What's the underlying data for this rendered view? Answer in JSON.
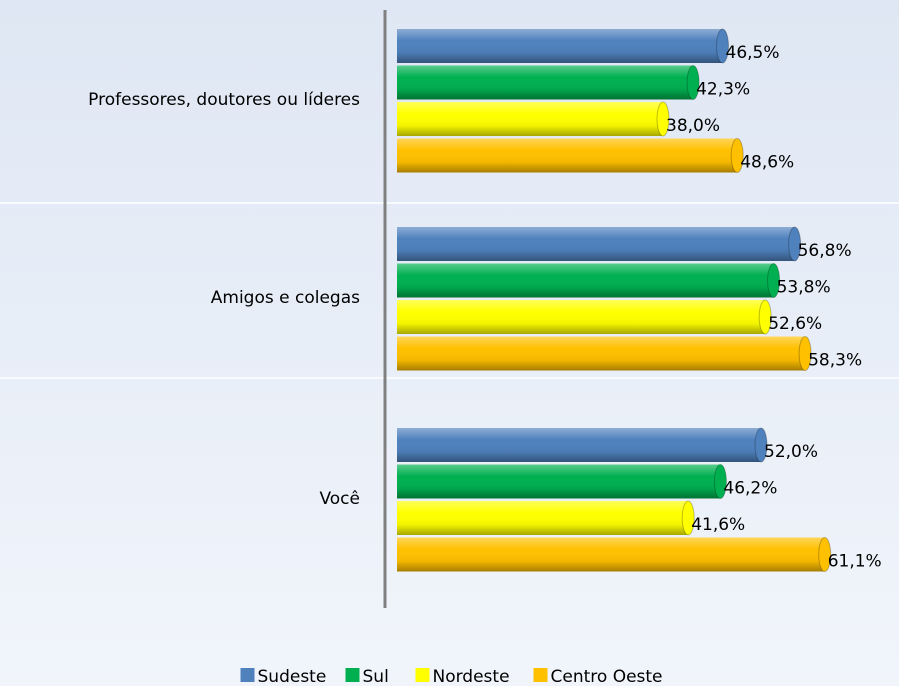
{
  "chart_data": {
    "type": "bar",
    "orientation": "horizontal",
    "categories": [
      "Professores, doutores ou líderes",
      "Amigos e colegas",
      "Você"
    ],
    "series": [
      {
        "name": "Sudeste",
        "color": "#4f81bd",
        "values": [
          46.5,
          56.8,
          52.0
        ],
        "value_labels": [
          "46,5%",
          "56,8%",
          "52,0%"
        ]
      },
      {
        "name": "Sul",
        "color": "#00b050",
        "values": [
          42.3,
          53.8,
          46.2
        ],
        "value_labels": [
          "42,3%",
          "53,8%",
          "46,2%"
        ]
      },
      {
        "name": "Nordeste",
        "color": "#ffff00",
        "values": [
          38.0,
          52.6,
          41.6
        ],
        "value_labels": [
          "38,0%",
          "52,6%",
          "41,6%"
        ]
      },
      {
        "name": "Centro Oeste",
        "color": "#ffc000",
        "values": [
          48.6,
          58.3,
          61.1
        ],
        "value_labels": [
          "48,6%",
          "58,3%",
          "61,1%"
        ]
      }
    ],
    "xlim": [
      0,
      70
    ],
    "legend": "bottom"
  }
}
